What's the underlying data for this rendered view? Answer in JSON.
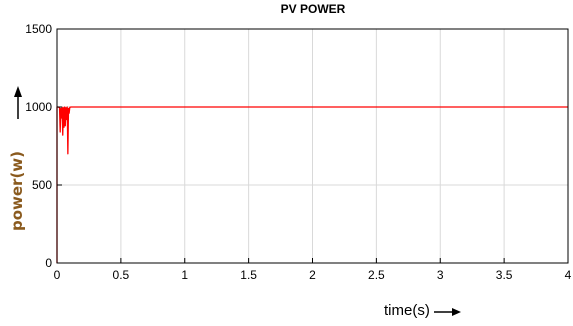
{
  "chart_data": {
    "type": "line",
    "title": "PV POWER",
    "xlabel": "time(s)",
    "ylabel": "power(w)",
    "xlim": [
      0,
      4
    ],
    "ylim": [
      0,
      1500
    ],
    "xticks": [
      0,
      0.5,
      1,
      1.5,
      2,
      2.5,
      3,
      3.5,
      4
    ],
    "xtick_labels": [
      "0",
      "0.5",
      "1",
      "1.5",
      "2",
      "2.5",
      "3",
      "3.5",
      "4"
    ],
    "yticks": [
      0,
      500,
      1000,
      1500
    ],
    "ytick_labels": [
      "0",
      "500",
      "1000",
      "1500"
    ],
    "grid": true,
    "series": [
      {
        "color": "#ff0000",
        "x": [
          0,
          0,
          0.01,
          0.02,
          0.025,
          0.03,
          0.035,
          0.04,
          0.045,
          0.05,
          0.055,
          0.06,
          0.065,
          0.07,
          0.075,
          0.08,
          0.085,
          0.09,
          0.095,
          0.1,
          0.11,
          0.2,
          0.5,
          1,
          1.5,
          2,
          2.5,
          3,
          3.5,
          4
        ],
        "y": [
          0,
          1000,
          1000,
          995,
          840,
          990,
          930,
          998,
          820,
          995,
          870,
          1000,
          880,
          995,
          920,
          1000,
          700,
          990,
          960,
          998,
          1000,
          1000,
          1000,
          1000,
          1000,
          1000,
          1000,
          1000,
          1000,
          1000
        ]
      }
    ]
  },
  "colors": {
    "axis": "#000000",
    "grid": "#d9d9d9",
    "series": "#ff0000",
    "ylabel": "#8a5a1e"
  }
}
